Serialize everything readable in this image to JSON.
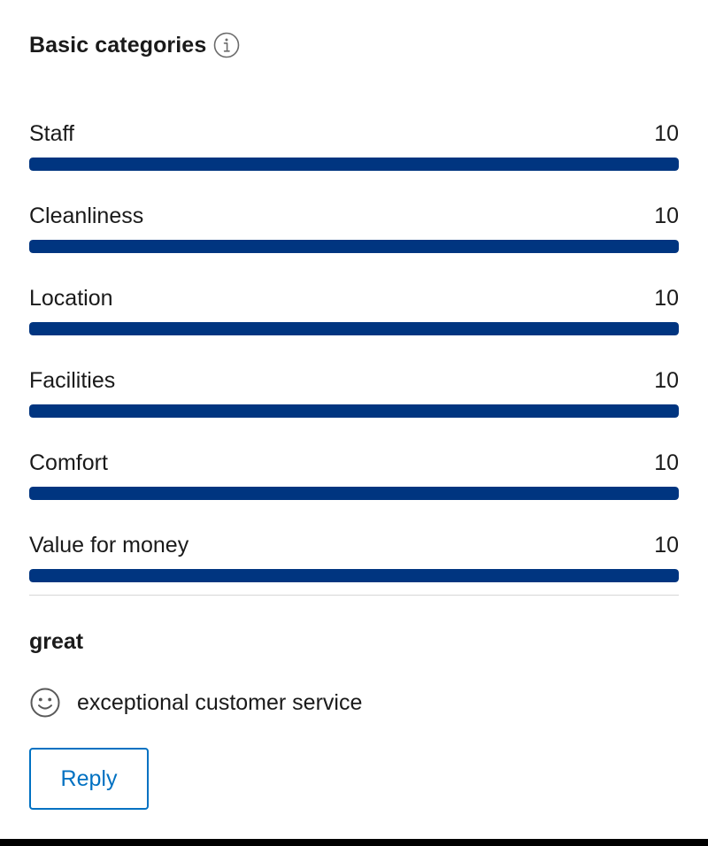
{
  "header": {
    "title": "Basic categories",
    "info_icon": "info-circle-icon"
  },
  "categories": [
    {
      "label": "Staff",
      "score": "10",
      "fill_fraction": 1.0
    },
    {
      "label": "Cleanliness",
      "score": "10",
      "fill_fraction": 1.0
    },
    {
      "label": "Location",
      "score": "10",
      "fill_fraction": 1.0
    },
    {
      "label": "Facilities",
      "score": "10",
      "fill_fraction": 1.0
    },
    {
      "label": "Comfort",
      "score": "10",
      "fill_fraction": 1.0
    },
    {
      "label": "Value for money",
      "score": "10",
      "fill_fraction": 1.0
    }
  ],
  "review": {
    "title": "great",
    "positive_icon": "smile-icon",
    "positive_text": "exceptional customer service",
    "reply_label": "Reply"
  },
  "colors": {
    "bar_fill": "#003580",
    "accent": "#0071c2",
    "text": "#1a1a1a"
  }
}
